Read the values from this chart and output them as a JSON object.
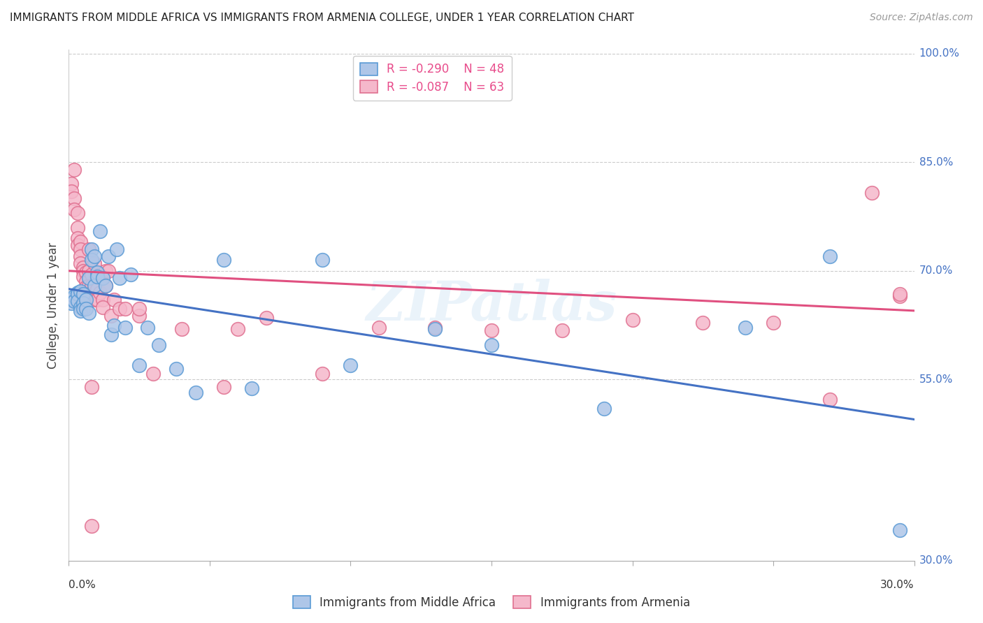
{
  "title": "IMMIGRANTS FROM MIDDLE AFRICA VS IMMIGRANTS FROM ARMENIA COLLEGE, UNDER 1 YEAR CORRELATION CHART",
  "source": "Source: ZipAtlas.com",
  "ylabel": "College, Under 1 year",
  "legend_blue_r": "-0.290",
  "legend_blue_n": "48",
  "legend_pink_r": "-0.087",
  "legend_pink_n": "63",
  "legend_label_blue": "Immigrants from Middle Africa",
  "legend_label_pink": "Immigrants from Armenia",
  "blue_color": "#aec6e8",
  "pink_color": "#f5b8cb",
  "blue_edge": "#5b9bd5",
  "pink_edge": "#e07090",
  "trend_blue": "#4472c4",
  "trend_pink": "#e05080",
  "watermark": "ZIPatlas",
  "xmin": 0.0,
  "xmax": 0.3,
  "ymin": 0.3,
  "ymax": 1.005,
  "ytick_positions": [
    1.0,
    0.85,
    0.7,
    0.55
  ],
  "ytick_labels": [
    "100.0%",
    "85.0%",
    "70.0%",
    "55.0%"
  ],
  "ymin_label": "30.0%",
  "xtick_positions": [
    0.0,
    0.05,
    0.1,
    0.15,
    0.2,
    0.25,
    0.3
  ],
  "blue_trend_x0": 0.0,
  "blue_trend_y0": 0.675,
  "blue_trend_x1": 0.3,
  "blue_trend_y1": 0.495,
  "pink_trend_x0": 0.0,
  "pink_trend_y0": 0.7,
  "pink_trend_x1": 0.3,
  "pink_trend_y1": 0.645,
  "blue_x": [
    0.001,
    0.001,
    0.002,
    0.002,
    0.003,
    0.003,
    0.003,
    0.004,
    0.004,
    0.004,
    0.005,
    0.005,
    0.005,
    0.006,
    0.006,
    0.007,
    0.007,
    0.008,
    0.008,
    0.009,
    0.009,
    0.01,
    0.01,
    0.011,
    0.012,
    0.013,
    0.014,
    0.015,
    0.016,
    0.017,
    0.018,
    0.02,
    0.022,
    0.025,
    0.028,
    0.032,
    0.038,
    0.045,
    0.055,
    0.065,
    0.09,
    0.1,
    0.13,
    0.15,
    0.19,
    0.24,
    0.27,
    0.295
  ],
  "blue_y": [
    0.66,
    0.655,
    0.665,
    0.658,
    0.67,
    0.668,
    0.658,
    0.672,
    0.65,
    0.645,
    0.668,
    0.655,
    0.648,
    0.66,
    0.648,
    0.69,
    0.642,
    0.73,
    0.715,
    0.72,
    0.68,
    0.698,
    0.692,
    0.755,
    0.69,
    0.68,
    0.72,
    0.612,
    0.625,
    0.73,
    0.69,
    0.622,
    0.695,
    0.57,
    0.622,
    0.598,
    0.565,
    0.532,
    0.715,
    0.538,
    0.715,
    0.57,
    0.62,
    0.598,
    0.51,
    0.622,
    0.72,
    0.342
  ],
  "pink_x": [
    0.001,
    0.001,
    0.002,
    0.002,
    0.002,
    0.003,
    0.003,
    0.003,
    0.003,
    0.004,
    0.004,
    0.004,
    0.004,
    0.005,
    0.005,
    0.005,
    0.006,
    0.006,
    0.006,
    0.006,
    0.007,
    0.007,
    0.007,
    0.008,
    0.008,
    0.008,
    0.009,
    0.009,
    0.009,
    0.01,
    0.01,
    0.011,
    0.011,
    0.012,
    0.012,
    0.013,
    0.013,
    0.014,
    0.015,
    0.016,
    0.018,
    0.02,
    0.025,
    0.03,
    0.04,
    0.055,
    0.07,
    0.09,
    0.11,
    0.13,
    0.15,
    0.175,
    0.2,
    0.225,
    0.25,
    0.27,
    0.285,
    0.295,
    0.008,
    0.025,
    0.06,
    0.295,
    0.008
  ],
  "pink_y": [
    0.82,
    0.81,
    0.8,
    0.785,
    0.84,
    0.78,
    0.76,
    0.745,
    0.735,
    0.74,
    0.73,
    0.72,
    0.71,
    0.705,
    0.7,
    0.692,
    0.698,
    0.685,
    0.678,
    0.67,
    0.7,
    0.68,
    0.73,
    0.695,
    0.68,
    0.67,
    0.68,
    0.66,
    0.71,
    0.675,
    0.66,
    0.67,
    0.695,
    0.66,
    0.65,
    0.68,
    0.7,
    0.7,
    0.638,
    0.66,
    0.648,
    0.648,
    0.638,
    0.558,
    0.62,
    0.54,
    0.635,
    0.558,
    0.622,
    0.622,
    0.618,
    0.618,
    0.632,
    0.628,
    0.628,
    0.522,
    0.808,
    0.665,
    0.348,
    0.648,
    0.62,
    0.668,
    0.54
  ]
}
